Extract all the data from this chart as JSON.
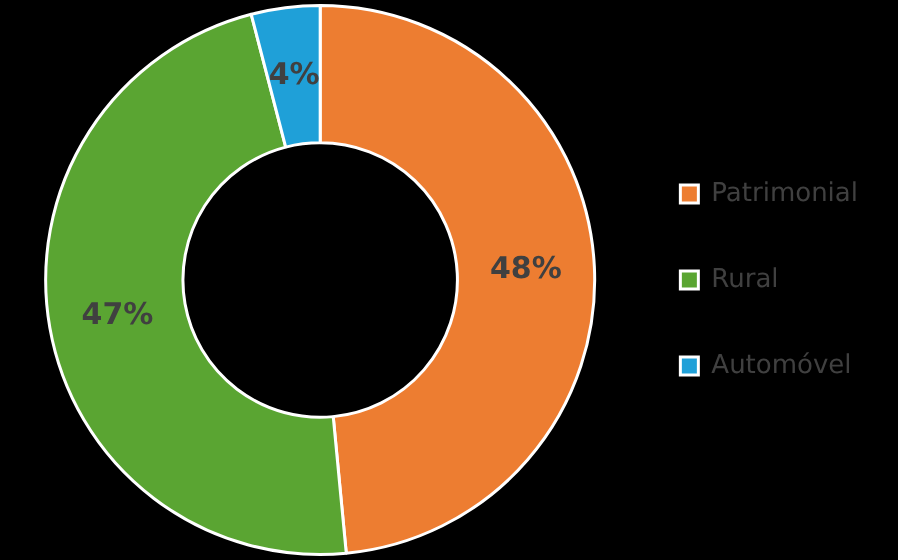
{
  "chart_data": {
    "type": "donut",
    "categories": [
      "Patrimonial",
      "Rural",
      "Automóvel"
    ],
    "values": [
      48,
      47,
      4
    ],
    "colors": [
      "#ed7d31",
      "#5aa532",
      "#1fa0d8"
    ],
    "value_labels": [
      "48%",
      "47%",
      "4%"
    ],
    "legend": "right"
  }
}
